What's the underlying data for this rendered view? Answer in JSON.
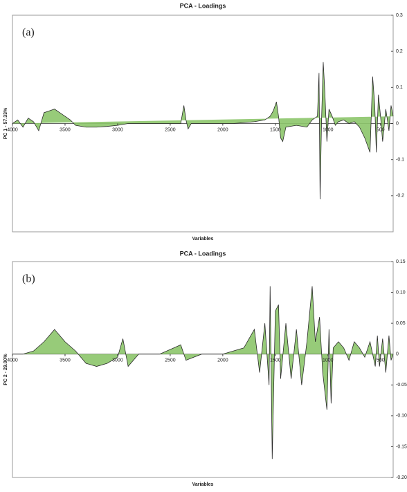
{
  "chart_data": [
    {
      "type": "area",
      "title": "PCA - Loadings",
      "annotation": "(a)",
      "x_label": "Variables",
      "y_label": "PC 1 - 57.33%",
      "color": "#8cc56a",
      "x": [
        4000,
        3950,
        3900,
        3850,
        3800,
        3750,
        3700,
        3650,
        3600,
        3550,
        3500,
        3450,
        3400,
        3300,
        3200,
        3100,
        3000,
        2900,
        2700,
        2500,
        2400,
        2370,
        2350,
        2330,
        2300,
        2100,
        1900,
        1700,
        1600,
        1550,
        1520,
        1490,
        1470,
        1450,
        1430,
        1400,
        1300,
        1200,
        1150,
        1100,
        1085,
        1075,
        1060,
        1045,
        1030,
        1010,
        990,
        960,
        930,
        900,
        850,
        800,
        750,
        700,
        650,
        600,
        575,
        555,
        540,
        520,
        500,
        480,
        450,
        420,
        400,
        380
      ],
      "values": [
        0,
        0.01,
        -0.01,
        0.015,
        0.005,
        -0.02,
        0.03,
        0.035,
        0.04,
        0.03,
        0.02,
        0.01,
        -0.005,
        -0.01,
        -0.01,
        -0.008,
        -0.005,
        0,
        0,
        0,
        0,
        0.05,
        0.01,
        -0.015,
        0,
        0,
        0,
        0.005,
        0.01,
        0.02,
        0.035,
        0.06,
        0.02,
        -0.04,
        -0.05,
        -0.01,
        -0.005,
        -0.01,
        0.01,
        0.02,
        0.14,
        -0.21,
        0.02,
        0.17,
        0.09,
        -0.05,
        0.04,
        0.02,
        -0.005,
        0.005,
        0.01,
        0,
        0.005,
        -0.01,
        -0.04,
        -0.08,
        0.13,
        0.05,
        -0.08,
        0.08,
        0.02,
        -0.05,
        0.04,
        -0.02,
        0.05,
        0.02
      ],
      "xlim": [
        4000,
        380
      ],
      "xticks": [
        4000,
        3500,
        3000,
        2500,
        2000,
        1500,
        1000,
        500
      ],
      "ylim": [
        -0.3,
        0.3
      ],
      "yticks": [
        0.3,
        0.2,
        0.1,
        0,
        -0.1,
        -0.2
      ]
    },
    {
      "type": "area",
      "title": "PCA - Loadings",
      "annotation": "(b)",
      "x_label": "Variables",
      "y_label": "PC 2 - 29.00%",
      "color": "#8cc56a",
      "x": [
        4000,
        3900,
        3800,
        3700,
        3650,
        3600,
        3550,
        3500,
        3400,
        3300,
        3200,
        3100,
        3000,
        2950,
        2900,
        2800,
        2600,
        2400,
        2350,
        2200,
        2000,
        1800,
        1700,
        1650,
        1600,
        1560,
        1550,
        1530,
        1500,
        1470,
        1450,
        1400,
        1350,
        1300,
        1250,
        1200,
        1150,
        1120,
        1080,
        1050,
        1010,
        990,
        970,
        950,
        900,
        850,
        800,
        750,
        700,
        650,
        600,
        550,
        530,
        510,
        480,
        450,
        420,
        400,
        380
      ],
      "values": [
        0,
        0,
        0.005,
        0.02,
        0.03,
        0.04,
        0.03,
        0.02,
        0.005,
        -0.015,
        -0.02,
        -0.015,
        -0.005,
        0.025,
        -0.02,
        0,
        0,
        0.015,
        -0.01,
        0,
        0,
        0.01,
        0.04,
        -0.03,
        0.05,
        -0.05,
        0.11,
        -0.17,
        0.07,
        0.08,
        -0.04,
        0.05,
        -0.04,
        0.04,
        -0.05,
        0.02,
        0.11,
        0.02,
        0.06,
        -0.03,
        -0.09,
        0.04,
        -0.08,
        0.01,
        0.02,
        0.01,
        -0.01,
        0.02,
        0.01,
        -0.005,
        0.02,
        -0.02,
        0.03,
        -0.02,
        0.025,
        -0.03,
        0.03,
        -0.01,
        0
      ],
      "xlim": [
        4000,
        380
      ],
      "xticks": [
        4000,
        3500,
        3000,
        2500,
        2000,
        1500,
        1000,
        500
      ],
      "ylim": [
        -0.2,
        0.15
      ],
      "yticks": [
        0.15,
        {
          "value": 0.1,
          "label": "0.10"
        },
        0.05,
        0,
        -0.05,
        {
          "value": -0.1,
          "label": "-0.10"
        },
        -0.15,
        {
          "value": -0.2,
          "label": "-0.20"
        }
      ]
    }
  ]
}
